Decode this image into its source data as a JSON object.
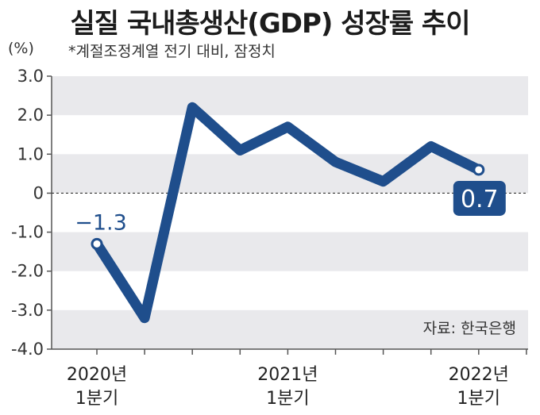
{
  "title": "실질 국내총생산(GDP) 성장률 추이",
  "subtitle": "*계절조정계열 전기 대비, 잠정치",
  "unit": "(%)",
  "source": "자료: 한국은행",
  "colors": {
    "line": "#1f4e8c",
    "band": "#e9e9ec",
    "label_box": "#1f4e8c"
  },
  "chart_data": {
    "type": "line",
    "title": "실질 국내총생산(GDP) 성장률 추이",
    "ylabel": "(%)",
    "xlabel": "",
    "ylim": [
      -4.0,
      3.0
    ],
    "y_ticks": [
      "3.0",
      "2.0",
      "1.0",
      "0",
      "-1.0",
      "-2.0",
      "-3.0",
      "-4.0"
    ],
    "x_tick_labels": [
      {
        "index": 0,
        "lines": [
          "2020년",
          "1분기"
        ]
      },
      {
        "index": 4,
        "lines": [
          "2021년",
          "1분기"
        ]
      },
      {
        "index": 8,
        "lines": [
          "2022년",
          "1분기"
        ]
      }
    ],
    "categories": [
      "2020 Q1",
      "2020 Q2",
      "2020 Q3",
      "2020 Q4",
      "2021 Q1",
      "2021 Q2",
      "2021 Q3",
      "2021 Q4",
      "2022 Q1",
      "2022 Q2"
    ],
    "series": [
      {
        "values": [
          -1.3,
          -3.2,
          2.2,
          1.1,
          1.7,
          0.8,
          0.3,
          1.2,
          0.6,
          0.7
        ]
      }
    ],
    "annotations": [
      {
        "index": 0,
        "text": "-1.3"
      },
      {
        "index": 9,
        "text": "0.7"
      }
    ],
    "zero_line": "dashed",
    "grid": "alternating bands"
  }
}
